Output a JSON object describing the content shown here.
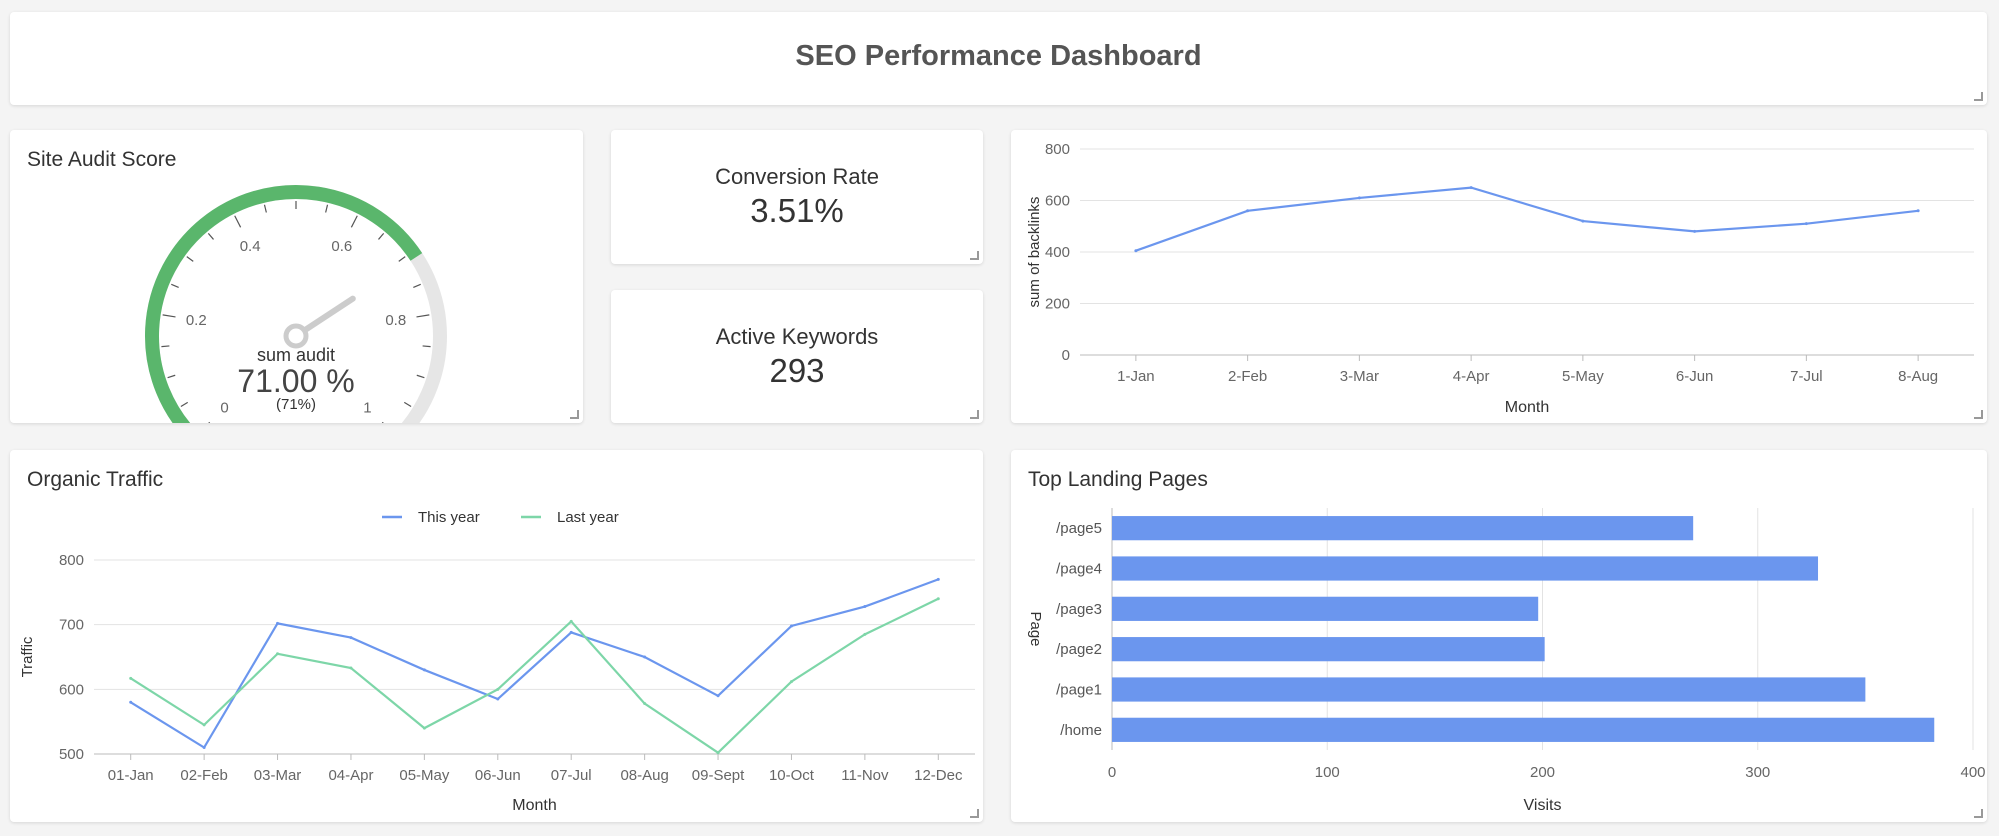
{
  "dashboard": {
    "title": "SEO Performance Dashboard"
  },
  "site_audit": {
    "title": "Site Audit Score",
    "label": "sum audit",
    "value_text": "71.00 %",
    "sub_text": "(71%)",
    "value": 0.71,
    "ticks": [
      "0",
      "0.2",
      "0.4",
      "0.6",
      "0.8",
      "1"
    ],
    "colors": {
      "fill": "#5ab66c",
      "track": "#e6e6e6",
      "needle": "#cccccc"
    }
  },
  "conversion_rate": {
    "label": "Conversion Rate",
    "value": "3.51%"
  },
  "active_keywords": {
    "label": "Active Keywords",
    "value": "293"
  },
  "chart_data": [
    {
      "id": "backlinks",
      "type": "line",
      "title": "",
      "xlabel": "Month",
      "ylabel": "sum of backlinks",
      "categories": [
        "1-Jan",
        "2-Feb",
        "3-Mar",
        "4-Apr",
        "5-May",
        "6-Jun",
        "7-Jul",
        "8-Aug"
      ],
      "series": [
        {
          "name": "sum of backlinks",
          "color": "#6b96ee",
          "values": [
            405,
            560,
            610,
            650,
            520,
            480,
            510,
            560
          ]
        }
      ],
      "ylim": [
        0,
        800
      ],
      "yticks": [
        0,
        200,
        400,
        600,
        800
      ],
      "grid": true
    },
    {
      "id": "organic_traffic",
      "type": "line",
      "title": "Organic Traffic",
      "xlabel": "Month",
      "ylabel": "Traffic",
      "categories": [
        "01-Jan",
        "02-Feb",
        "03-Mar",
        "04-Apr",
        "05-May",
        "06-Jun",
        "07-Jul",
        "08-Aug",
        "09-Sept",
        "10-Oct",
        "11-Nov",
        "12-Dec"
      ],
      "series": [
        {
          "name": "This year",
          "color": "#6b96ee",
          "values": [
            580,
            510,
            702,
            680,
            630,
            585,
            688,
            650,
            590,
            698,
            728,
            770
          ]
        },
        {
          "name": "Last year",
          "color": "#7dd6a8",
          "values": [
            617,
            545,
            655,
            633,
            540,
            600,
            705,
            578,
            502,
            612,
            685,
            740
          ]
        }
      ],
      "ylim": [
        500,
        800
      ],
      "yticks": [
        500,
        600,
        700,
        800
      ],
      "legend": "top-center",
      "grid": true
    },
    {
      "id": "landing_pages",
      "type": "bar",
      "orientation": "horizontal",
      "title": "Top Landing Pages",
      "xlabel": "Visits",
      "ylabel": "Page",
      "categories": [
        "/page5",
        "/page4",
        "/page3",
        "/page2",
        "/page1",
        "/home"
      ],
      "values": [
        270,
        328,
        198,
        201,
        350,
        382
      ],
      "color": "#6b96ee",
      "xlim": [
        0,
        400
      ],
      "xticks": [
        0,
        100,
        200,
        300,
        400
      ],
      "grid": true
    }
  ]
}
